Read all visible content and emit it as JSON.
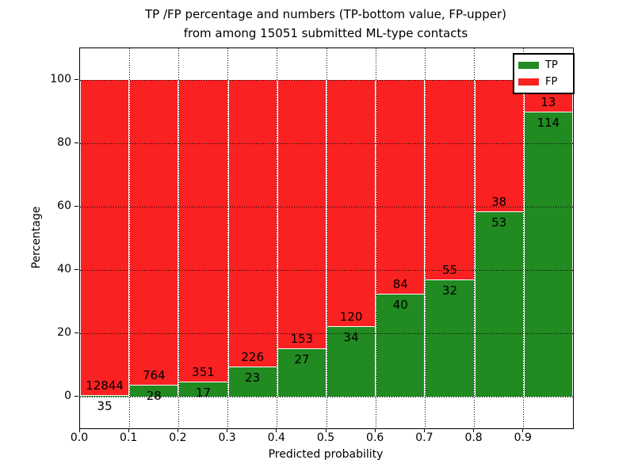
{
  "title": {
    "line1": "TP /FP percentage and numbers (TP-bottom value, FP-upper)",
    "line2": "from among 15051 submitted ML-type contacts"
  },
  "axes": {
    "xlabel": "Predicted probability",
    "ylabel": "Percentage",
    "x_tick_labels": [
      "0.0",
      "0.1",
      "0.2",
      "0.3",
      "0.4",
      "0.5",
      "0.6",
      "0.7",
      "0.8",
      "0.9"
    ],
    "y_tick_labels": [
      "0",
      "20",
      "40",
      "60",
      "80",
      "100"
    ]
  },
  "legend": {
    "position": "upper right",
    "tp_label": "TP",
    "fp_label": "FP"
  },
  "chart_data": {
    "type": "bar",
    "stacked": true,
    "normalized": "each bin stacked to 100%",
    "title": "TP /FP percentage and numbers (TP-bottom value, FP-upper) from among 15051 submitted ML-type contacts",
    "xlabel": "Predicted probability",
    "ylabel": "Percentage",
    "xlim": [
      0.0,
      1.0
    ],
    "ylim": [
      -10,
      110
    ],
    "x_ticks": [
      0.0,
      0.1,
      0.2,
      0.3,
      0.4,
      0.5,
      0.6,
      0.7,
      0.8,
      0.9
    ],
    "y_ticks": [
      0,
      20,
      40,
      60,
      80,
      100
    ],
    "grid": "black dotted, both axes, drawn over bars",
    "categories": [
      "0.0-0.1",
      "0.1-0.2",
      "0.2-0.3",
      "0.3-0.4",
      "0.4-0.5",
      "0.5-0.6",
      "0.6-0.7",
      "0.7-0.8",
      "0.8-0.9",
      "0.9-1.0"
    ],
    "series": [
      {
        "name": "TP",
        "color": "#218a21",
        "counts": [
          35,
          28,
          17,
          23,
          27,
          34,
          40,
          32,
          53,
          114
        ],
        "percent_of_bin": [
          0.27,
          3.54,
          4.62,
          9.24,
          15.0,
          22.08,
          32.26,
          36.78,
          58.24,
          89.76
        ]
      },
      {
        "name": "FP",
        "color": "#f92121",
        "counts": [
          12844,
          764,
          351,
          226,
          153,
          120,
          84,
          55,
          38,
          13
        ],
        "percent_of_bin": [
          99.73,
          96.46,
          95.38,
          90.76,
          85.0,
          77.92,
          67.74,
          63.22,
          41.76,
          10.24
        ]
      }
    ],
    "total_contacts_shown_in_title": 15051,
    "legend_entries": [
      "TP",
      "FP"
    ],
    "bar_label_note": "TP count below segment boundary, FP count above segment boundary"
  }
}
